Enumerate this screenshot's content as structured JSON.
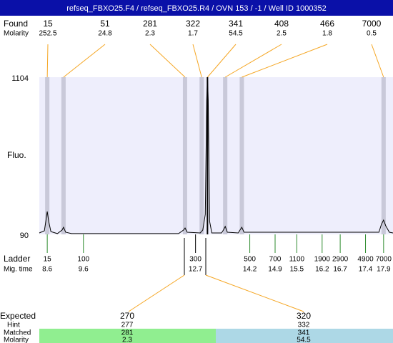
{
  "header": {
    "title": "refseq_FBXO25.F4 / refseq_FBXO25.R4 / OVN 153 / -1 / Well ID 1000352"
  },
  "found": {
    "label": "Found",
    "molarity_label": "Molarity",
    "peaks": [
      {
        "size": 15,
        "molarity": 252.5,
        "time": 8.6
      },
      {
        "size": 51,
        "molarity": 24.8,
        "time": 9.05
      },
      {
        "size": 281,
        "molarity": 2.3,
        "time": 12.41
      },
      {
        "size": 322,
        "molarity": 1.7,
        "time": 12.87
      },
      {
        "size": 341,
        "molarity": 54.5,
        "time": 13.03
      },
      {
        "size": 408,
        "molarity": 2.5,
        "time": 13.52
      },
      {
        "size": 466,
        "molarity": 1.8,
        "time": 13.98
      },
      {
        "size": 7000,
        "molarity": 0.5,
        "time": 17.9
      }
    ]
  },
  "fluo": {
    "label": "Fluo.",
    "ylim": [
      90,
      1104
    ],
    "yticks": [
      1104,
      90
    ],
    "xlim": [
      8.38,
      18.16
    ],
    "trace": {
      "t": [
        8.38,
        8.52,
        8.56,
        8.6,
        8.64,
        8.7,
        8.88,
        9.01,
        9.05,
        9.11,
        9.27,
        12.23,
        12.37,
        12.41,
        12.47,
        12.83,
        12.9,
        12.97,
        13.01,
        13.03,
        13.05,
        13.09,
        13.15,
        13.42,
        13.48,
        13.52,
        13.58,
        13.88,
        13.94,
        13.98,
        14.04,
        17.77,
        17.84,
        17.9,
        17.96,
        18.06,
        18.16
      ],
      "fluo": [
        99,
        113,
        173,
        238,
        173,
        108,
        95,
        118,
        136,
        104,
        95,
        95,
        118,
        131,
        104,
        99,
        118,
        219,
        957,
        1104,
        957,
        173,
        99,
        99,
        122,
        141,
        104,
        99,
        122,
        136,
        104,
        104,
        155,
        182,
        145,
        104,
        99
      ]
    }
  },
  "ladder": {
    "label": "Ladder",
    "time_label": "Mig. time",
    "sizes": [
      15,
      100,
      300,
      500,
      700,
      1100,
      1900,
      2900,
      4900,
      7000
    ],
    "times": [
      8.6,
      9.6,
      12.7,
      14.2,
      14.9,
      15.5,
      16.2,
      16.7,
      17.4,
      17.9
    ]
  },
  "expected": {
    "label": "Expected",
    "hint_label": "Hint",
    "matched_label": "Matched",
    "molarity_label": "Molarity",
    "items": [
      {
        "expected": 270,
        "hint": 277,
        "matched": 281,
        "molarity": 2.3
      },
      {
        "expected": 320,
        "hint": 332,
        "matched": 341,
        "molarity": 54.5
      }
    ]
  }
}
